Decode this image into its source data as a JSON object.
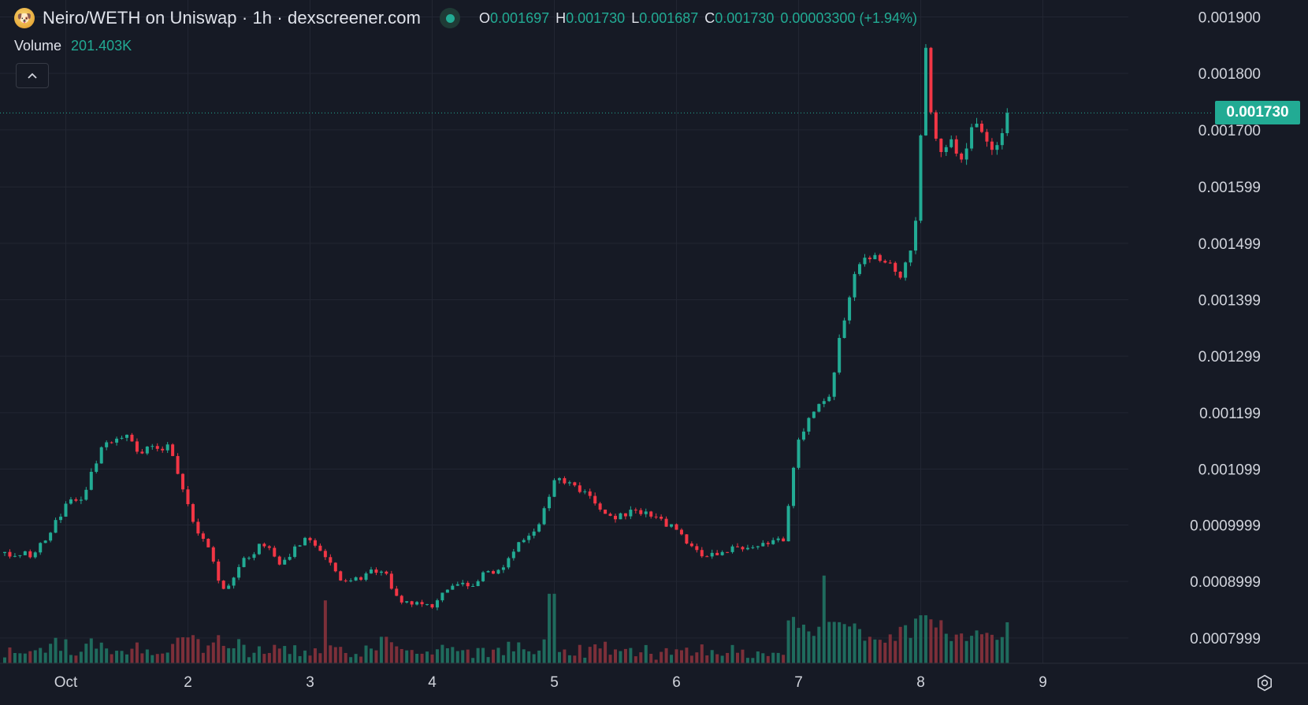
{
  "header": {
    "pair_title": "Neiro/WETH on Uniswap · 1h · dexscreener.com",
    "logo_icon": "neiro-token-icon",
    "status_icon": "market-open-dot-icon",
    "ohlc": {
      "o_label": "O",
      "o_value": "0.001697",
      "h_label": "H",
      "h_value": "0.001730",
      "l_label": "L",
      "l_value": "0.001687",
      "c_label": "C",
      "c_value": "0.001730",
      "change": "0.00003300 (+1.94%)"
    },
    "volume_label": "Volume",
    "volume_value": "201.403K",
    "collapse_icon": "chevron-up-icon"
  },
  "last_price_label": "0.001730",
  "settings_icon": "gear-icon",
  "colors": {
    "background": "#161a25",
    "grid": "#222632",
    "up": "#22ab94",
    "down": "#f23645",
    "volume_up": "#1f6b5d",
    "volume_down": "#7c2f39",
    "axis_text": "#d1d4dc"
  },
  "chart_data": {
    "type": "candlestick",
    "interval": "1h",
    "title": "Neiro/WETH on Uniswap · 1h · dexscreener.com",
    "ylim": [
      0.000755,
      0.00193
    ],
    "y_ticks": [
      {
        "value": 0.0019,
        "label": "0.001900"
      },
      {
        "value": 0.0018,
        "label": "0.001800"
      },
      {
        "value": 0.0017,
        "label": "0.001700"
      },
      {
        "value": 0.001599,
        "label": "0.001599"
      },
      {
        "value": 0.001499,
        "label": "0.001499"
      },
      {
        "value": 0.001399,
        "label": "0.001399"
      },
      {
        "value": 0.001299,
        "label": "0.001299"
      },
      {
        "value": 0.001199,
        "label": "0.001199"
      },
      {
        "value": 0.001099,
        "label": "0.001099"
      },
      {
        "value": 0.0009999,
        "label": "0.0009999"
      },
      {
        "value": 0.0008999,
        "label": "0.0008999"
      },
      {
        "value": 0.0007999,
        "label": "0.0007999"
      }
    ],
    "x_ticks": [
      {
        "day": 1,
        "label": "Oct"
      },
      {
        "day": 2,
        "label": "2"
      },
      {
        "day": 3,
        "label": "3"
      },
      {
        "day": 4,
        "label": "4"
      },
      {
        "day": 5,
        "label": "5"
      },
      {
        "day": 6,
        "label": "6"
      },
      {
        "day": 7,
        "label": "7"
      },
      {
        "day": 8,
        "label": "8"
      },
      {
        "day": 9,
        "label": "9"
      }
    ],
    "x_range_days": [
      0.5,
      9.7
    ],
    "last_price": 0.00173,
    "price_anchors": [
      [
        0.5,
        0.00095
      ],
      [
        0.75,
        0.000948
      ],
      [
        1.0,
        0.001035
      ],
      [
        1.15,
        0.001052
      ],
      [
        1.3,
        0.001145
      ],
      [
        1.5,
        0.001162
      ],
      [
        1.6,
        0.00113
      ],
      [
        1.85,
        0.00114
      ],
      [
        1.95,
        0.00107
      ],
      [
        2.08,
        0.000985
      ],
      [
        2.18,
        0.000955
      ],
      [
        2.28,
        0.000878
      ],
      [
        2.45,
        0.000935
      ],
      [
        2.62,
        0.000968
      ],
      [
        2.75,
        0.00093
      ],
      [
        2.95,
        0.000975
      ],
      [
        3.1,
        0.000955
      ],
      [
        3.25,
        0.0009
      ],
      [
        3.38,
        0.000902
      ],
      [
        3.5,
        0.000918
      ],
      [
        3.62,
        0.000915
      ],
      [
        3.72,
        0.000865
      ],
      [
        3.86,
        0.000862
      ],
      [
        4.0,
        0.000858
      ],
      [
        4.1,
        0.000885
      ],
      [
        4.22,
        0.0009
      ],
      [
        4.32,
        0.000888
      ],
      [
        4.45,
        0.00092
      ],
      [
        4.55,
        0.000918
      ],
      [
        4.7,
        0.00097
      ],
      [
        4.88,
        0.001
      ],
      [
        5.0,
        0.001082
      ],
      [
        5.2,
        0.001065
      ],
      [
        5.38,
        0.00103
      ],
      [
        5.5,
        0.001012
      ],
      [
        5.62,
        0.001025
      ],
      [
        5.8,
        0.001018
      ],
      [
        6.0,
        0.00099
      ],
      [
        6.22,
        0.000945
      ],
      [
        6.42,
        0.000955
      ],
      [
        6.62,
        0.000962
      ],
      [
        6.88,
        0.000975
      ],
      [
        6.98,
        0.00114
      ],
      [
        7.12,
        0.0012
      ],
      [
        7.25,
        0.00122
      ],
      [
        7.35,
        0.001345
      ],
      [
        7.48,
        0.00146
      ],
      [
        7.6,
        0.00148
      ],
      [
        7.72,
        0.00147
      ],
      [
        7.82,
        0.00144
      ],
      [
        7.92,
        0.00148
      ],
      [
        7.98,
        0.00157
      ],
      [
        8.0,
        0.0017
      ],
      [
        8.04,
        0.00185
      ],
      [
        8.08,
        0.00173
      ],
      [
        8.15,
        0.00165
      ],
      [
        8.25,
        0.00168
      ],
      [
        8.32,
        0.00163
      ],
      [
        8.42,
        0.00171
      ],
      [
        8.5,
        0.0017
      ],
      [
        8.58,
        0.00166
      ],
      [
        8.66,
        0.00169
      ],
      [
        8.7,
        0.00173
      ]
    ],
    "volume_spikes": [
      {
        "day": 3.12,
        "value": 0.38
      },
      {
        "day": 3.6,
        "value": 0.16
      },
      {
        "day": 4.98,
        "value": 0.42
      },
      {
        "day": 5.4,
        "value": 0.13
      },
      {
        "day": 5.75,
        "value": 0.11
      },
      {
        "day": 6.95,
        "value": 0.2
      },
      {
        "day": 7.2,
        "value": 0.53
      },
      {
        "day": 7.27,
        "value": 0.25
      },
      {
        "day": 7.58,
        "value": 0.16
      },
      {
        "day": 7.85,
        "value": 0.22
      },
      {
        "day": 7.95,
        "value": 0.27
      },
      {
        "day": 8.02,
        "value": 0.29
      },
      {
        "day": 8.15,
        "value": 0.26
      },
      {
        "day": 8.33,
        "value": 0.18
      }
    ]
  }
}
